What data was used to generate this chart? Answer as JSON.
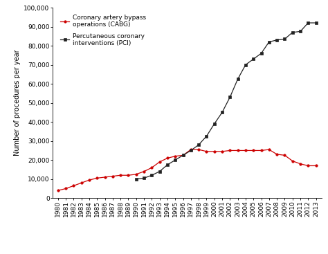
{
  "cabg_years": [
    1980,
    1981,
    1982,
    1983,
    1984,
    1985,
    1986,
    1987,
    1988,
    1989,
    1990,
    1991,
    1992,
    1993,
    1994,
    1995,
    1996,
    1997,
    1998,
    1999,
    2000,
    2001,
    2002,
    2003,
    2004,
    2005,
    2006,
    2007,
    2008,
    2009,
    2010,
    2011,
    2012,
    2013
  ],
  "cabg_values": [
    4000,
    5000,
    6500,
    8000,
    9500,
    10500,
    11000,
    11500,
    12000,
    12000,
    12500,
    14000,
    16000,
    19000,
    21000,
    22000,
    22500,
    25500,
    25500,
    24500,
    24500,
    24500,
    25000,
    25000,
    25000,
    25000,
    25000,
    25500,
    23000,
    22500,
    19500,
    18000,
    17000,
    17000
  ],
  "pci_years": [
    1990,
    1991,
    1992,
    1993,
    1994,
    1995,
    1996,
    1997,
    1998,
    1999,
    2000,
    2001,
    2002,
    2003,
    2004,
    2005,
    2006,
    2007,
    2008,
    2009,
    2010,
    2011,
    2012,
    2013
  ],
  "pci_values": [
    10000,
    10500,
    12000,
    14000,
    17500,
    20000,
    22500,
    25000,
    28000,
    32500,
    39000,
    45000,
    53000,
    62500,
    70000,
    73000,
    76000,
    82000,
    83000,
    83500,
    87000,
    87500,
    92000,
    92000
  ],
  "cabg_color": "#cc0000",
  "pci_color": "#222222",
  "ylabel": "Number of procedures per year",
  "ylim": [
    0,
    100000
  ],
  "yticks": [
    0,
    10000,
    20000,
    30000,
    40000,
    50000,
    60000,
    70000,
    80000,
    90000,
    100000
  ],
  "ytick_labels": [
    "0",
    "10,000",
    "20,000",
    "30,000",
    "40,000",
    "50,000",
    "60,000",
    "70,000",
    "80,000",
    "90,000",
    "100,000"
  ],
  "cabg_label": "Coronary artery bypass\noperations (CABG)",
  "pci_label": "Percutaneous coronary\ninterventions (PCI)",
  "background_color": "#ffffff",
  "tick_fontsize": 6.5,
  "label_fontsize": 7,
  "legend_fontsize": 6.5
}
